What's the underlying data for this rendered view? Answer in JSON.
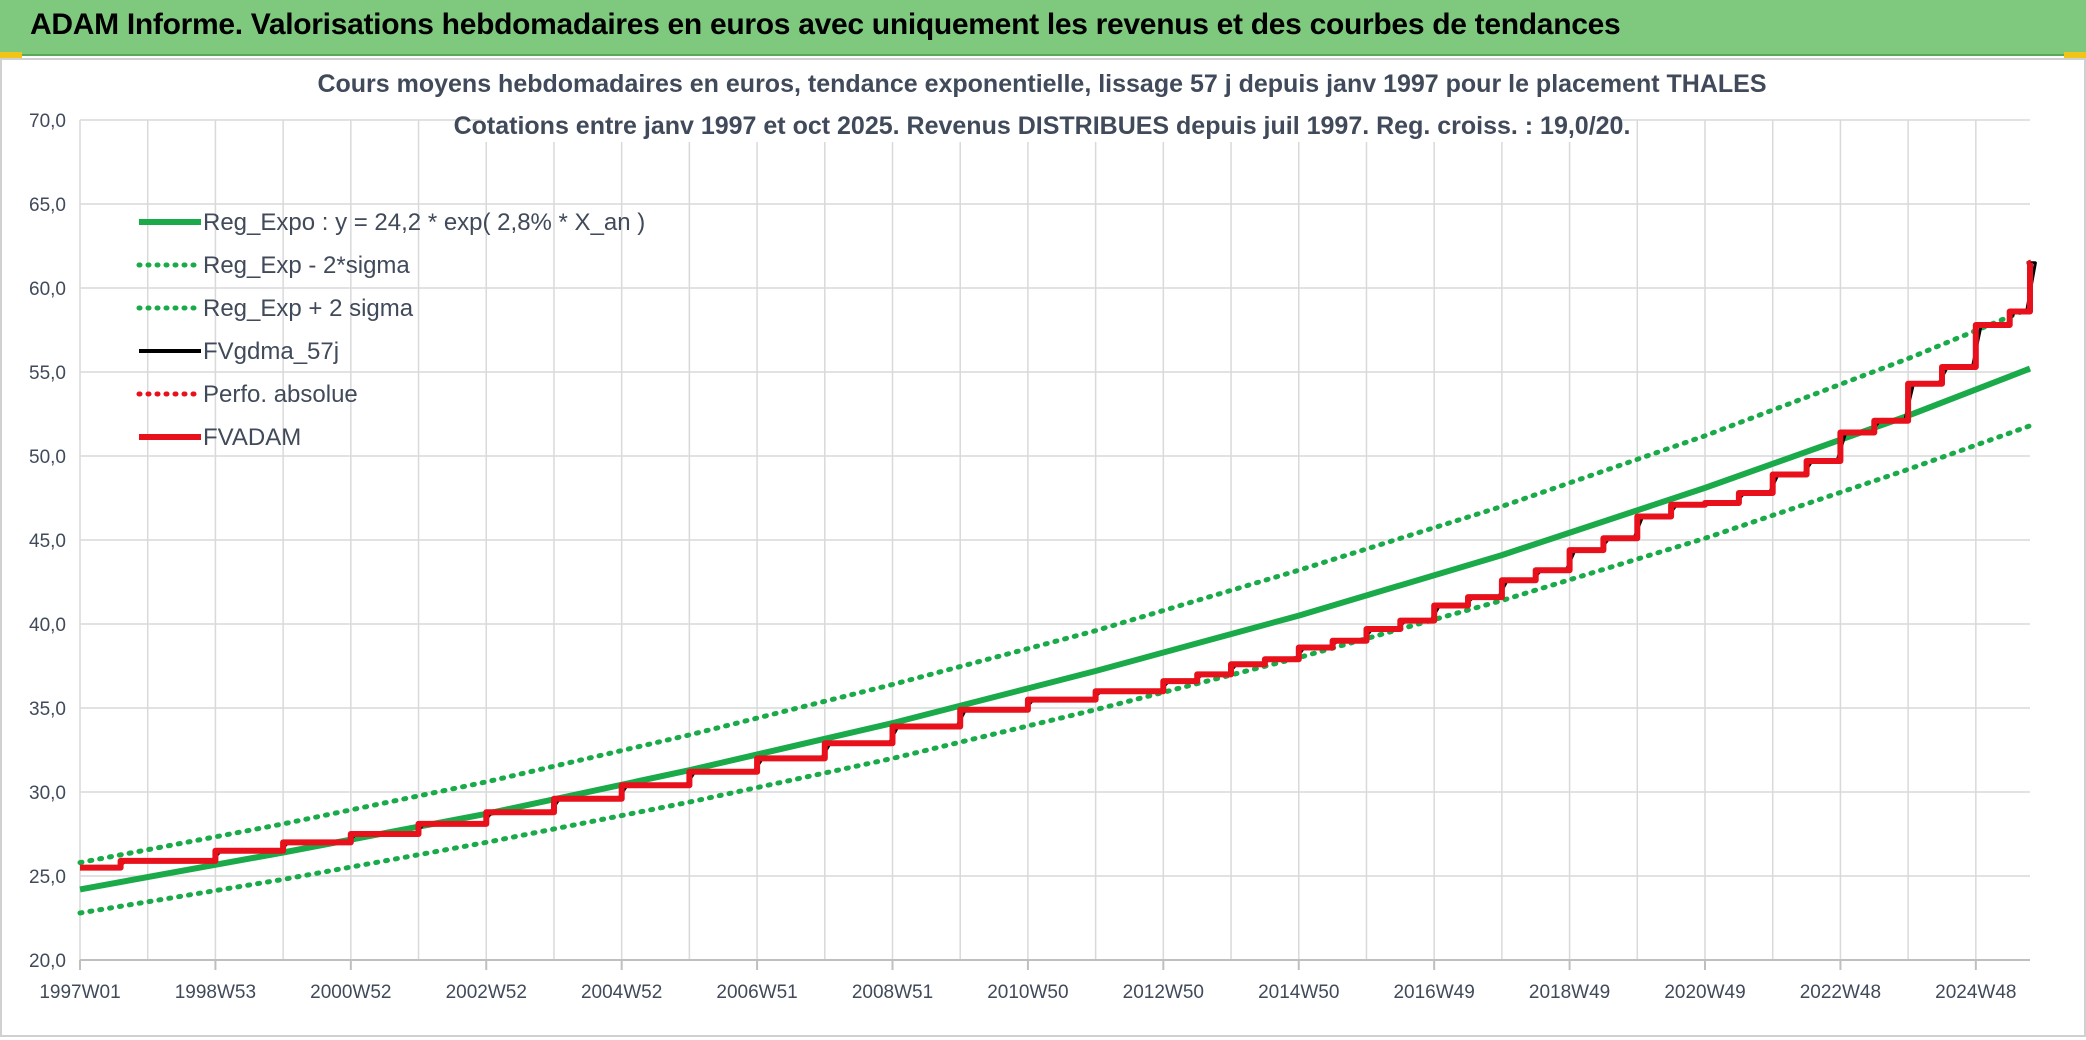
{
  "header": {
    "title": "ADAM Informe. Valorisations hebdomadaires en euros avec uniquement les revenus et des courbes de tendances"
  },
  "colors": {
    "banner": "#7fc97f",
    "trend": "#1aaa4a",
    "black": "#000000",
    "red": "#e8101a"
  },
  "chart_data": {
    "type": "line",
    "title": "Cours moyens hebdomadaires en euros, tendance exponentielle, lissage 57 j depuis janv 1997 pour le placement THALES",
    "subtitle": "Cotations entre janv 1997 et oct 2025. Revenus DISTRIBUES depuis juil 1997. Reg. croiss. : 19,0/20.",
    "xlabel": "",
    "ylabel": "",
    "ylim": [
      20,
      70
    ],
    "xlim": [
      1997.0,
      2025.8
    ],
    "grid": true,
    "legend_position": "top-left",
    "y_ticks": [
      "20,0",
      "25,0",
      "30,0",
      "35,0",
      "40,0",
      "45,0",
      "50,0",
      "55,0",
      "60,0",
      "65,0",
      "70,0"
    ],
    "x_ticks": [
      {
        "label": "1997W01",
        "x": 1997.0
      },
      {
        "label": "1998W53",
        "x": 1999.0
      },
      {
        "label": "2000W52",
        "x": 2001.0
      },
      {
        "label": "2002W52",
        "x": 2003.0
      },
      {
        "label": "2004W52",
        "x": 2005.0
      },
      {
        "label": "2006W51",
        "x": 2007.0
      },
      {
        "label": "2008W51",
        "x": 2009.0
      },
      {
        "label": "2010W50",
        "x": 2011.0
      },
      {
        "label": "2012W50",
        "x": 2013.0
      },
      {
        "label": "2014W50",
        "x": 2015.0
      },
      {
        "label": "2016W49",
        "x": 2017.0
      },
      {
        "label": "2018W49",
        "x": 2019.0
      },
      {
        "label": "2020W49",
        "x": 2021.0
      },
      {
        "label": "2022W48",
        "x": 2023.0
      },
      {
        "label": "2024W48",
        "x": 2025.0
      }
    ],
    "series": [
      {
        "name": "Reg_Expo : y = 24,2 * exp( 2,8% *  X_an )",
        "style": "solid-thick",
        "color": "#1aaa4a",
        "x": [
          1997.0,
          2000.0,
          2003.0,
          2006.0,
          2009.0,
          2012.0,
          2015.0,
          2018.0,
          2021.0,
          2024.0,
          2025.8
        ],
        "y": [
          24.2,
          26.4,
          28.7,
          31.3,
          34.1,
          37.2,
          40.5,
          44.1,
          48.1,
          52.4,
          55.2
        ]
      },
      {
        "name": "Reg_Exp - 2*sigma",
        "style": "dotted",
        "color": "#1aaa4a",
        "x": [
          1997.0,
          2000.0,
          2003.0,
          2006.0,
          2009.0,
          2012.0,
          2015.0,
          2018.0,
          2021.0,
          2024.0,
          2025.8
        ],
        "y": [
          22.8,
          24.8,
          27.0,
          29.4,
          32.0,
          34.9,
          38.0,
          41.4,
          45.1,
          49.2,
          51.8
        ]
      },
      {
        "name": "Reg_Exp + 2 sigma",
        "style": "dotted",
        "color": "#1aaa4a",
        "x": [
          1997.0,
          2000.0,
          2003.0,
          2006.0,
          2009.0,
          2012.0,
          2015.0,
          2018.0,
          2021.0,
          2024.0,
          2025.8
        ],
        "y": [
          25.8,
          28.1,
          30.6,
          33.4,
          36.4,
          39.6,
          43.2,
          47.0,
          51.2,
          55.8,
          58.8
        ]
      },
      {
        "name": "FVgdma_57j",
        "style": "solid",
        "color": "#000000",
        "steps": [
          [
            1997.0,
            25.5
          ],
          [
            1997.6,
            25.9
          ],
          [
            1999.0,
            26.5
          ],
          [
            2000.0,
            27.0
          ],
          [
            2001.0,
            27.5
          ],
          [
            2002.0,
            28.1
          ],
          [
            2003.0,
            28.8
          ],
          [
            2004.0,
            29.6
          ],
          [
            2005.0,
            30.4
          ],
          [
            2006.0,
            31.2
          ],
          [
            2007.0,
            32.0
          ],
          [
            2008.0,
            32.9
          ],
          [
            2009.0,
            33.9
          ],
          [
            2010.0,
            34.9
          ],
          [
            2011.0,
            35.5
          ],
          [
            2012.0,
            36.0
          ],
          [
            2013.0,
            36.6
          ],
          [
            2013.5,
            37.0
          ],
          [
            2014.0,
            37.6
          ],
          [
            2014.5,
            37.9
          ],
          [
            2015.0,
            38.6
          ],
          [
            2015.5,
            39.0
          ],
          [
            2016.0,
            39.7
          ],
          [
            2016.5,
            40.2
          ],
          [
            2017.0,
            41.1
          ],
          [
            2017.5,
            41.6
          ],
          [
            2018.0,
            42.6
          ],
          [
            2018.5,
            43.2
          ],
          [
            2019.0,
            44.4
          ],
          [
            2019.5,
            45.1
          ],
          [
            2020.0,
            46.4
          ],
          [
            2020.5,
            47.1
          ],
          [
            2021.0,
            47.2
          ],
          [
            2021.5,
            47.8
          ],
          [
            2022.0,
            48.9
          ],
          [
            2022.5,
            49.7
          ],
          [
            2023.0,
            51.4
          ],
          [
            2023.5,
            52.1
          ],
          [
            2024.0,
            54.3
          ],
          [
            2024.5,
            55.3
          ],
          [
            2025.0,
            57.8
          ],
          [
            2025.5,
            58.6
          ],
          [
            2025.8,
            61.5
          ]
        ]
      },
      {
        "name": "Perfo. absolue",
        "style": "dotted",
        "color": "#e8101a",
        "steps": []
      },
      {
        "name": "FVADAM",
        "style": "solid-thick",
        "color": "#e8101a",
        "steps": [
          [
            1997.0,
            25.5
          ],
          [
            1997.6,
            25.9
          ],
          [
            1999.0,
            26.5
          ],
          [
            2000.0,
            27.0
          ],
          [
            2001.0,
            27.5
          ],
          [
            2002.0,
            28.1
          ],
          [
            2003.0,
            28.8
          ],
          [
            2004.0,
            29.6
          ],
          [
            2005.0,
            30.4
          ],
          [
            2006.0,
            31.2
          ],
          [
            2007.0,
            32.0
          ],
          [
            2008.0,
            32.9
          ],
          [
            2009.0,
            33.9
          ],
          [
            2010.0,
            34.9
          ],
          [
            2011.0,
            35.5
          ],
          [
            2012.0,
            36.0
          ],
          [
            2013.0,
            36.6
          ],
          [
            2013.5,
            37.0
          ],
          [
            2014.0,
            37.6
          ],
          [
            2014.5,
            37.9
          ],
          [
            2015.0,
            38.6
          ],
          [
            2015.5,
            39.0
          ],
          [
            2016.0,
            39.7
          ],
          [
            2016.5,
            40.2
          ],
          [
            2017.0,
            41.1
          ],
          [
            2017.5,
            41.6
          ],
          [
            2018.0,
            42.6
          ],
          [
            2018.5,
            43.2
          ],
          [
            2019.0,
            44.4
          ],
          [
            2019.5,
            45.1
          ],
          [
            2020.0,
            46.4
          ],
          [
            2020.5,
            47.1
          ],
          [
            2021.0,
            47.2
          ],
          [
            2021.5,
            47.8
          ],
          [
            2022.0,
            48.9
          ],
          [
            2022.5,
            49.7
          ],
          [
            2023.0,
            51.4
          ],
          [
            2023.5,
            52.1
          ],
          [
            2024.0,
            54.3
          ],
          [
            2024.5,
            55.3
          ],
          [
            2025.0,
            57.8
          ],
          [
            2025.5,
            58.6
          ],
          [
            2025.8,
            61.5
          ]
        ]
      }
    ]
  }
}
